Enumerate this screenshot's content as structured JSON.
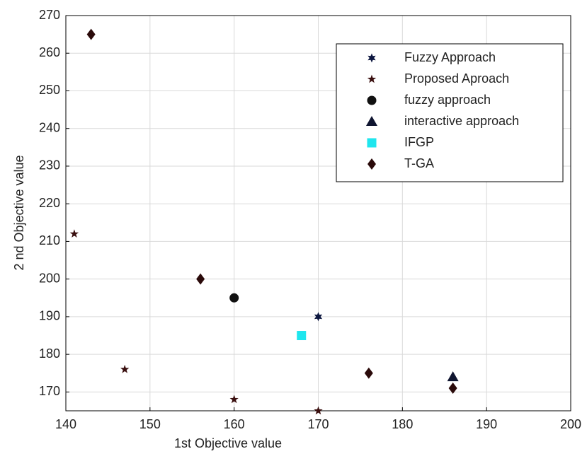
{
  "chart_data": {
    "type": "scatter",
    "xlabel": "1st Objective value",
    "ylabel": "2 nd Objective value",
    "xlim": [
      140,
      200
    ],
    "ylim": [
      165,
      270
    ],
    "xticks": [
      140,
      150,
      160,
      170,
      180,
      190,
      200
    ],
    "yticks": [
      170,
      180,
      190,
      200,
      210,
      220,
      230,
      240,
      250,
      260,
      270
    ],
    "grid": true,
    "legend": "upper right",
    "series": [
      {
        "name": "Fuzzy Approach",
        "color": "#0d1740",
        "marker": "star6",
        "x": [
          170
        ],
        "values": [
          190
        ]
      },
      {
        "name": "Proposed Aproach",
        "color": "#3a0f0f",
        "marker": "star5",
        "x": [
          141,
          147,
          160,
          170
        ],
        "values": [
          212,
          176,
          168,
          165
        ]
      },
      {
        "name": "fuzzy approach",
        "color": "#111111",
        "marker": "circle",
        "x": [
          160
        ],
        "values": [
          195
        ]
      },
      {
        "name": "interactive approach",
        "color": "#0f1530",
        "marker": "triangle",
        "x": [
          186
        ],
        "values": [
          174
        ]
      },
      {
        "name": "IFGP",
        "color": "#1fe6ee",
        "marker": "square",
        "x": [
          168
        ],
        "values": [
          185
        ]
      },
      {
        "name": "T-GA",
        "color": "#2a0a0a",
        "marker": "diamond",
        "x": [
          143,
          156,
          176,
          186
        ],
        "values": [
          265,
          200,
          175,
          171
        ]
      }
    ]
  }
}
